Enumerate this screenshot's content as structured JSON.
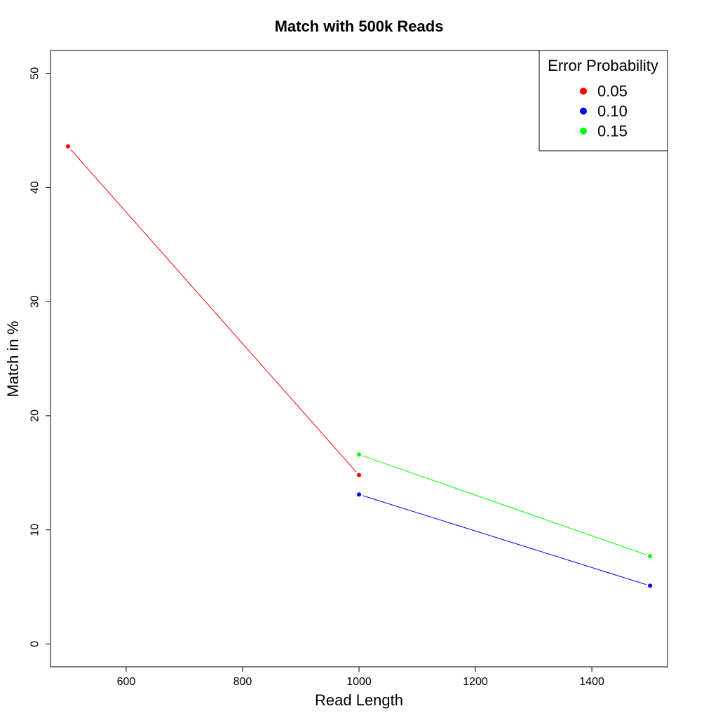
{
  "chart_data": {
    "type": "line",
    "title": "Match with 500k Reads",
    "xlabel": "Read Length",
    "ylabel": "Match in %",
    "xlim": [
      470,
      1530
    ],
    "ylim": [
      -2,
      52
    ],
    "x_ticks": [
      600,
      800,
      1000,
      1200,
      1400
    ],
    "y_ticks": [
      0,
      10,
      20,
      30,
      40,
      50
    ],
    "grid": false,
    "legend": {
      "title": "Error Probability",
      "placement": "top-right"
    },
    "series": [
      {
        "name": "0.05",
        "color": "#ff0000",
        "points": [
          {
            "x": 500,
            "y": 43.6
          },
          {
            "x": 1000,
            "y": 14.8
          }
        ]
      },
      {
        "name": "0.10",
        "color": "#0000ff",
        "points": [
          {
            "x": 1000,
            "y": 13.1
          },
          {
            "x": 1500,
            "y": 5.1
          }
        ]
      },
      {
        "name": "0.15",
        "color": "#00ff00",
        "points": [
          {
            "x": 1000,
            "y": 16.6
          },
          {
            "x": 1500,
            "y": 7.7
          }
        ]
      }
    ]
  }
}
